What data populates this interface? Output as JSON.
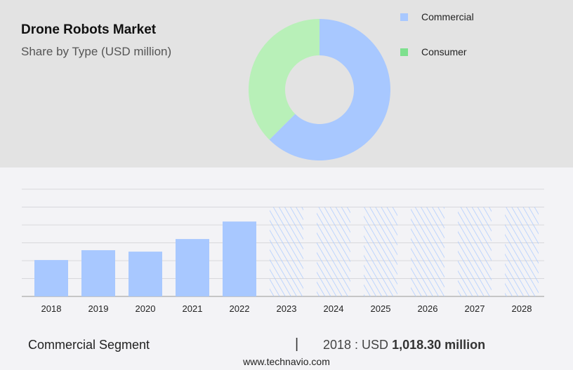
{
  "header": {
    "title": "Drone Robots Market",
    "subtitle": "Share by Type (USD million)"
  },
  "chart_data": [
    {
      "type": "pie",
      "donut": true,
      "title": "Drone Robots Market",
      "subtitle": "Share by Type (USD million)",
      "labels": [
        "Commercial",
        "Consumer"
      ],
      "shares_percent": [
        62.5,
        37.5
      ],
      "colors": [
        "#a8c8ff",
        "#b8f0b8"
      ],
      "legend_colors": [
        "#a8c8ff",
        "#7ee08e"
      ],
      "legend": "right"
    },
    {
      "type": "bar",
      "categories": [
        "2018",
        "2019",
        "2020",
        "2021",
        "2022",
        "2023",
        "2024",
        "2025",
        "2026",
        "2027",
        "2028"
      ],
      "series": [
        {
          "name": "Commercial Segment",
          "values": [
            1018.3,
            1293,
            1253,
            1606,
            2095,
            null,
            null,
            null,
            null,
            null,
            null
          ]
        }
      ],
      "forecast_categories": [
        "2023",
        "2024",
        "2025",
        "2026",
        "2027",
        "2028"
      ],
      "forecast_style": "hatched",
      "color": "#a8c8ff",
      "grid": true,
      "ylim": [
        0,
        3000
      ],
      "y_tick_labels_shown": false
    }
  ],
  "footer": {
    "segment": "Commercial Segment",
    "separator": "|",
    "value_prefix": "2018 : USD ",
    "value": "1,018.30 million",
    "site": "www.technavio.com"
  }
}
